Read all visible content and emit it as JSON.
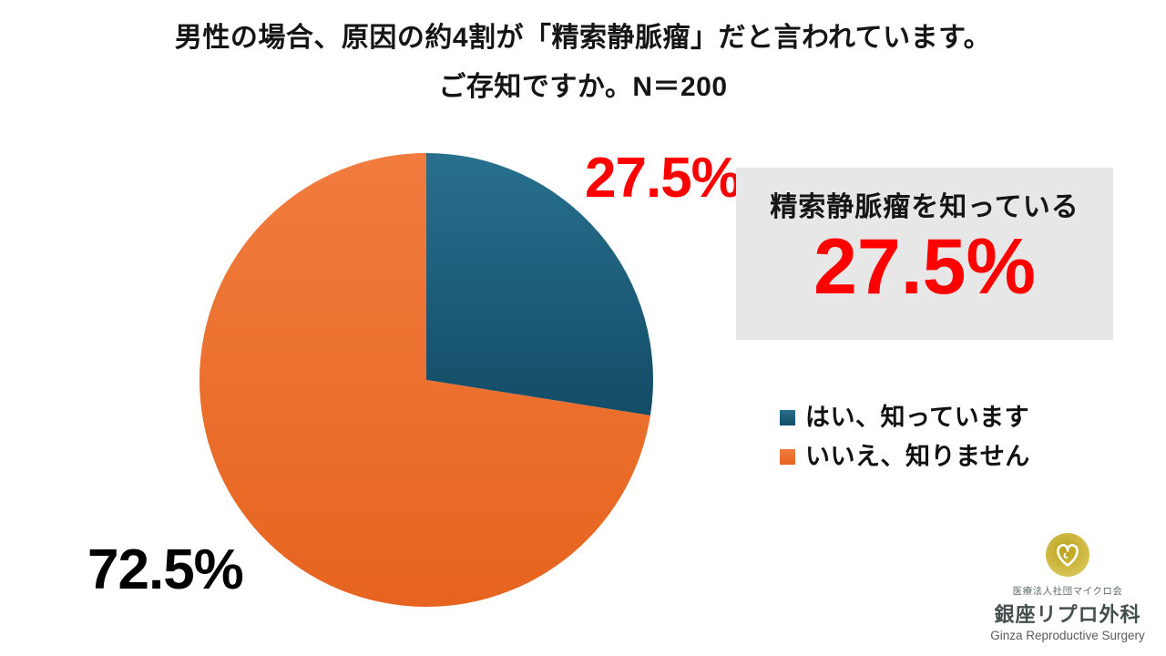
{
  "slide": {
    "title_line1": "男性の場合、原因の約4割が「精索静脈瘤」だと言われています。",
    "title_line2": "ご存知ですか。N＝200"
  },
  "chart_data": {
    "type": "pie",
    "title": "男性の場合、原因の約4割が「精索静脈瘤」だと言われています。ご存知ですか。",
    "n": 200,
    "categories": [
      "はい、知っています",
      "いいえ、知りません"
    ],
    "values": [
      27.5,
      72.5
    ],
    "value_labels": [
      "27.5%",
      "72.5%"
    ],
    "start_angle": "12-oclock-clockwise",
    "legend_position": "right",
    "colors": [
      {
        "base": "#1F5F80",
        "light": "#28708F",
        "dark": "#134C66"
      },
      {
        "base": "#EE7030",
        "light": "#F17C3E",
        "dark": "#E6641F"
      }
    ],
    "label_colors": [
      "#FF0000",
      "#000000"
    ]
  },
  "callout": {
    "label": "精索静脈瘤を知っている",
    "value": "27.5%",
    "value_color": "#FF0000",
    "background": "#E7E7E7"
  },
  "logo": {
    "org_small": "医療法人社団マイクロ会",
    "org_main": "銀座リプロ外科",
    "org_en": "Ginza Reproductive Surgery",
    "badge_gold_inner": "#BBA01A",
    "badge_gold_outer": "#D9C75B"
  }
}
